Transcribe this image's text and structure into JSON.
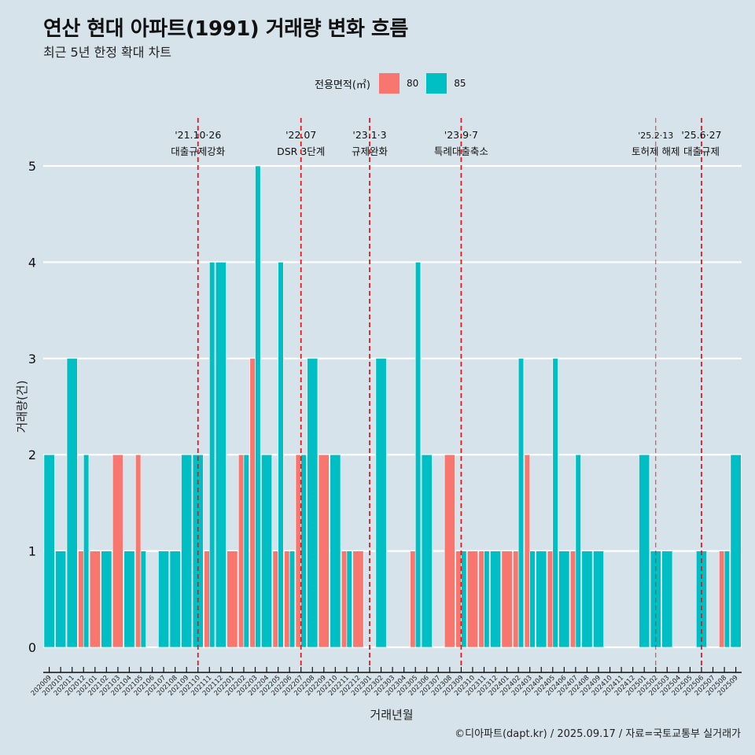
{
  "chart_data": {
    "type": "bar",
    "title": "연산 현대 아파트(1991) 거래량 변화 흐름",
    "subtitle": "최근 5년 한정 확대 차트",
    "xlabel": "거래년월",
    "ylabel": "거래량(건)",
    "ylim": [
      0,
      5
    ],
    "yticks": [
      0,
      1,
      2,
      3,
      4,
      5
    ],
    "grid": true,
    "legend": {
      "title": "전용면적(㎡)",
      "position": "top",
      "entries": [
        {
          "name": "80",
          "color": "#f8766d"
        },
        {
          "name": "85",
          "color": "#00bfc4"
        }
      ]
    },
    "categories": [
      "202009",
      "202010",
      "202011",
      "202012",
      "202101",
      "202102",
      "202103",
      "202104",
      "202105",
      "202106",
      "202107",
      "202108",
      "202109",
      "202110",
      "202111",
      "202112",
      "202201",
      "202202",
      "202203",
      "202204",
      "202205",
      "202206",
      "202207",
      "202208",
      "202209",
      "202210",
      "202211",
      "202212",
      "202301",
      "202302",
      "202303",
      "202304",
      "202305",
      "202306",
      "202307",
      "202308",
      "202309",
      "202310",
      "202311",
      "202312",
      "202401",
      "202402",
      "202403",
      "202404",
      "202405",
      "202406",
      "202407",
      "202408",
      "202409",
      "202410",
      "202411",
      "202412",
      "202501",
      "202502",
      "202503",
      "202504",
      "202505",
      "202506",
      "202507",
      "202508",
      "202509"
    ],
    "series": [
      {
        "name": "80",
        "color": "#f8766d",
        "values": [
          0,
          0,
          0,
          1,
          1,
          0,
          2,
          0,
          2,
          0,
          0,
          0,
          0,
          0,
          1,
          0,
          1,
          2,
          3,
          0,
          1,
          1,
          2,
          0,
          2,
          0,
          1,
          1,
          0,
          0,
          0,
          0,
          1,
          0,
          0,
          2,
          1,
          1,
          1,
          0,
          1,
          1,
          2,
          0,
          1,
          0,
          1,
          0,
          0,
          0,
          0,
          0,
          0,
          0,
          0,
          0,
          0,
          0,
          0,
          1,
          0
        ]
      },
      {
        "name": "85",
        "color": "#00bfc4",
        "values": [
          2,
          1,
          3,
          2,
          0,
          1,
          0,
          1,
          1,
          0,
          1,
          1,
          2,
          2,
          4,
          4,
          0,
          2,
          5,
          2,
          4,
          1,
          2,
          3,
          0,
          2,
          1,
          0,
          0,
          3,
          0,
          0,
          4,
          2,
          0,
          0,
          1,
          0,
          1,
          1,
          0,
          3,
          1,
          1,
          3,
          1,
          2,
          1,
          1,
          0,
          0,
          0,
          2,
          1,
          1,
          0,
          0,
          1,
          0,
          1,
          2
        ]
      }
    ],
    "annotations": [
      {
        "month": "202110",
        "date": "'21.10·26",
        "label": "대출규제강화",
        "style": "major"
      },
      {
        "month": "202207",
        "date": "'22.07",
        "label": "DSR 3단계",
        "style": "major"
      },
      {
        "month": "202301",
        "date": "'23.1·3",
        "label": "규제완화",
        "style": "major"
      },
      {
        "month": "202309",
        "date": "'23.9·7",
        "label": "특례대출축소",
        "style": "major"
      },
      {
        "month": "202502",
        "date": "'25.2·13",
        "label": "토허제 해제",
        "style": "minor"
      },
      {
        "month": "202506",
        "date": "'25.6·27",
        "label": "대출규제",
        "style": "major"
      }
    ],
    "annotation_line_color": "#e41a1c"
  },
  "footer": "©디아파트(dapt.kr) / 2025.09.17 / 자료=국토교통부 실거래가"
}
